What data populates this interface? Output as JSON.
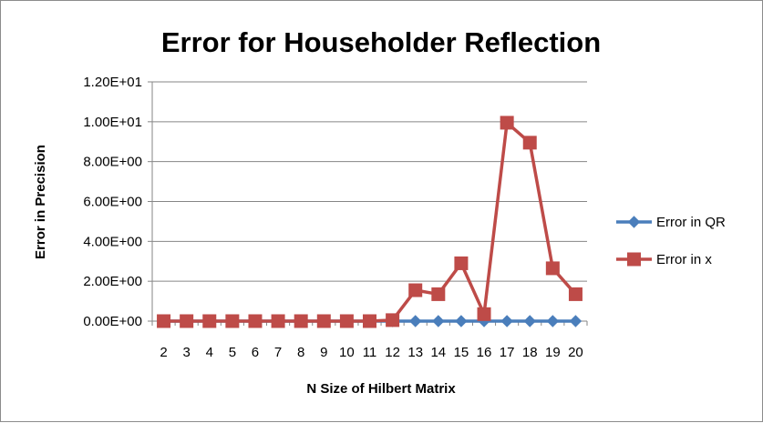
{
  "chart_data": {
    "type": "line",
    "title": "Error for Householder Reflection",
    "xlabel": "N Size of Hilbert Matrix",
    "ylabel": "Error in Precision",
    "categories": [
      "2",
      "3",
      "4",
      "5",
      "6",
      "7",
      "8",
      "9",
      "10",
      "11",
      "12",
      "13",
      "14",
      "15",
      "16",
      "17",
      "18",
      "19",
      "20"
    ],
    "ylim": [
      0,
      12
    ],
    "yticks": [
      0,
      2,
      4,
      6,
      8,
      10,
      12
    ],
    "ytick_labels": [
      "0.00E+00",
      "2.00E+00",
      "4.00E+00",
      "6.00E+00",
      "8.00E+00",
      "1.00E+01",
      "1.20E+01"
    ],
    "grid": true,
    "legend_position": "right",
    "series": [
      {
        "name": "Error in QR",
        "color": "#4a7ebb",
        "marker": "diamond",
        "values": [
          0,
          0,
          0,
          0,
          0,
          0,
          0,
          0,
          0,
          0,
          0,
          0,
          0,
          0,
          0,
          0,
          0,
          0,
          0
        ]
      },
      {
        "name": "Error in x",
        "color": "#be4b48",
        "marker": "square",
        "values": [
          0,
          0,
          0,
          0,
          0,
          0,
          0,
          0,
          0,
          0,
          0.05,
          1.55,
          1.35,
          2.9,
          0.35,
          9.95,
          8.95,
          2.65,
          1.35
        ]
      }
    ]
  }
}
